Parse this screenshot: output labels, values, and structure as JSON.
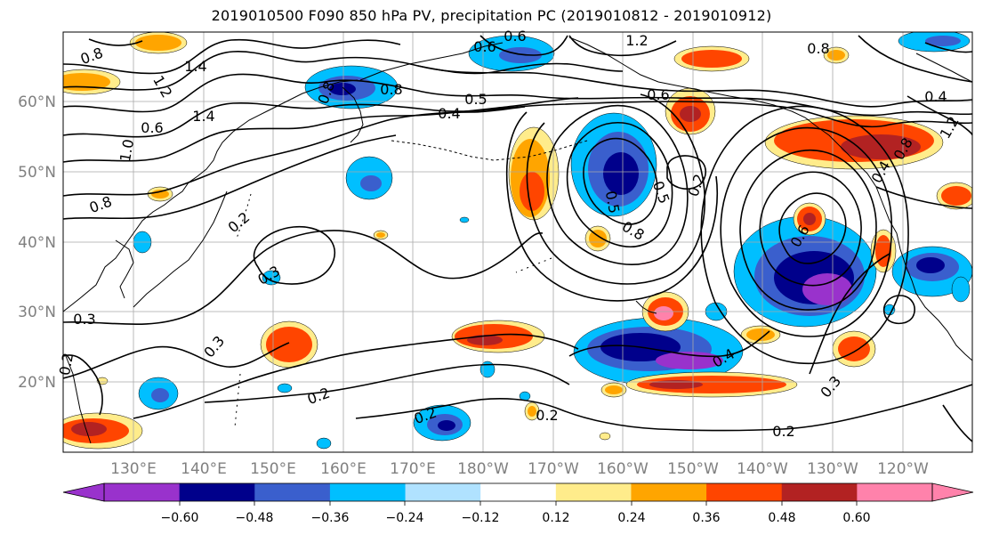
{
  "title": "2019010500 F090 850 hPa PV, precipitation PC (2019010812 - 2019010912)",
  "map": {
    "lat_labels": [
      "60°N",
      "50°N",
      "40°N",
      "30°N",
      "20°N"
    ],
    "lon_labels": [
      "130°E",
      "140°E",
      "150°E",
      "160°E",
      "170°E",
      "180°W",
      "170°W",
      "160°W",
      "150°W",
      "140°W",
      "130°W",
      "120°W"
    ],
    "contour_labels": [
      "1.4",
      "1.2",
      "0.8",
      "0.6",
      "1.0",
      "1.4",
      "0.8",
      "0.6",
      "0.8",
      "1.2",
      "0.6",
      "0.4",
      "0.8",
      "0.5",
      "0.4",
      "0.5",
      "0.6",
      "0.8",
      "0.5",
      "0.2",
      "0.6",
      "0.2",
      "0.3",
      "0.3",
      "0.2",
      "0.3",
      "0.2",
      "0.2",
      "0.2",
      "0.8",
      "0.4",
      "0.2",
      "0.3",
      "1.2",
      "0.8",
      "0.4"
    ]
  },
  "colorbar": {
    "tick_labels": [
      "−0.60",
      "−0.48",
      "−0.36",
      "−0.24",
      "−0.12",
      "0.12",
      "0.24",
      "0.36",
      "0.48",
      "0.60"
    ],
    "colors": [
      "#9932cc",
      "#00008b",
      "#3a5fcd",
      "#00bfff",
      "#b0e2ff",
      "#ffffff",
      "#ffec8b",
      "#ffa500",
      "#ff4500",
      "#b22222",
      "#ff82ab"
    ]
  }
}
